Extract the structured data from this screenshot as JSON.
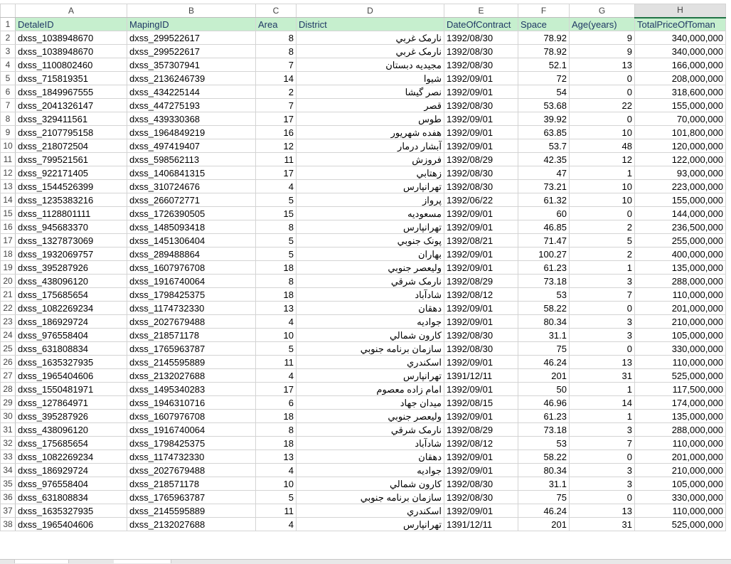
{
  "columns": [
    "A",
    "B",
    "C",
    "D",
    "E",
    "F",
    "G",
    "H"
  ],
  "header": [
    "DetaleID",
    "MapingID",
    "Area",
    "District",
    "DateOfContract",
    "Space",
    "Age(years)",
    "TotalPriceOfToman"
  ],
  "rows": [
    [
      "dxss_1038948670",
      "dxss_299522617",
      "8",
      "نارمک غربي",
      "1392/08/30",
      "78.92",
      "9",
      "340,000,000"
    ],
    [
      "dxss_1038948670",
      "dxss_299522617",
      "8",
      "نارمک غربي",
      "1392/08/30",
      "78.92",
      "9",
      "340,000,000"
    ],
    [
      "dxss_1100802460",
      "dxss_357307941",
      "7",
      "مجيديه دبستان",
      "1392/08/30",
      "52.1",
      "13",
      "166,000,000"
    ],
    [
      "dxss_715819351",
      "dxss_2136246739",
      "14",
      "شيوا",
      "1392/09/01",
      "72",
      "0",
      "208,000,000"
    ],
    [
      "dxss_1849967555",
      "dxss_434225144",
      "2",
      "نصر گيشا",
      "1392/09/01",
      "54",
      "0",
      "318,600,000"
    ],
    [
      "dxss_2041326147",
      "dxss_447275193",
      "7",
      "قصر",
      "1392/08/30",
      "53.68",
      "22",
      "155,000,000"
    ],
    [
      "dxss_329411561",
      "dxss_439330368",
      "17",
      "طوس",
      "1392/09/01",
      "39.92",
      "0",
      "70,000,000"
    ],
    [
      "dxss_2107795158",
      "dxss_1964849219",
      "16",
      "هفده شهريور",
      "1392/09/01",
      "63.85",
      "10",
      "101,800,000"
    ],
    [
      "dxss_218072504",
      "dxss_497419407",
      "12",
      "آبشار درمار",
      "1392/09/01",
      "53.7",
      "48",
      "120,000,000"
    ],
    [
      "dxss_799521561",
      "dxss_598562113",
      "11",
      "فروزش",
      "1392/08/29",
      "42.35",
      "12",
      "122,000,000"
    ],
    [
      "dxss_922171405",
      "dxss_1406841315",
      "17",
      "زهتابي",
      "1392/08/30",
      "47",
      "1",
      "93,000,000"
    ],
    [
      "dxss_1544526399",
      "dxss_310724676",
      "4",
      "تهرانپارس",
      "1392/08/30",
      "73.21",
      "10",
      "223,000,000"
    ],
    [
      "dxss_1235383216",
      "dxss_266072771",
      "5",
      "پرواز",
      "1392/06/22",
      "61.32",
      "10",
      "155,000,000"
    ],
    [
      "dxss_1128801111",
      "dxss_1726390505",
      "15",
      "مسعوديه",
      "1392/09/01",
      "60",
      "0",
      "144,000,000"
    ],
    [
      "dxss_945683370",
      "dxss_1485093418",
      "8",
      "تهرانپارس",
      "1392/09/01",
      "46.85",
      "2",
      "236,500,000"
    ],
    [
      "dxss_1327873069",
      "dxss_1451306404",
      "5",
      "پونک جنوبي",
      "1392/08/21",
      "71.47",
      "5",
      "255,000,000"
    ],
    [
      "dxss_1932069757",
      "dxss_289488864",
      "5",
      "بهاران",
      "1392/09/01",
      "100.27",
      "2",
      "400,000,000"
    ],
    [
      "dxss_395287926",
      "dxss_1607976708",
      "18",
      "وليعصر جنوبي",
      "1392/09/01",
      "61.23",
      "1",
      "135,000,000"
    ],
    [
      "dxss_438096120",
      "dxss_1916740064",
      "8",
      "نارمک شرقي",
      "1392/08/29",
      "73.18",
      "3",
      "288,000,000"
    ],
    [
      "dxss_175685654",
      "dxss_1798425375",
      "18",
      "شادآباد",
      "1392/08/12",
      "53",
      "7",
      "110,000,000"
    ],
    [
      "dxss_1082269234",
      "dxss_1174732330",
      "13",
      "دهقان",
      "1392/09/01",
      "58.22",
      "0",
      "201,000,000"
    ],
    [
      "dxss_186929724",
      "dxss_2027679488",
      "4",
      "جواديه",
      "1392/09/01",
      "80.34",
      "3",
      "210,000,000"
    ],
    [
      "dxss_976558404",
      "dxss_218571178",
      "10",
      "کارون شمالي",
      "1392/08/30",
      "31.1",
      "3",
      "105,000,000"
    ],
    [
      "dxss_631808834",
      "dxss_1765963787",
      "5",
      "سازمان برنامه جنوبي",
      "1392/08/30",
      "75",
      "0",
      "330,000,000"
    ],
    [
      "dxss_1635327935",
      "dxss_2145595889",
      "11",
      "اسکندري",
      "1392/09/01",
      "46.24",
      "13",
      "110,000,000"
    ],
    [
      "dxss_1965404606",
      "dxss_2132027688",
      "4",
      "تهرانپارس",
      "1391/12/11",
      "201",
      "31",
      "525,000,000"
    ],
    [
      "dxss_1550481971",
      "dxss_1495340283",
      "17",
      "امام زاده معصوم",
      "1392/09/01",
      "50",
      "1",
      "117,500,000"
    ],
    [
      "dxss_127864971",
      "dxss_1946310716",
      "6",
      "ميدان جهاد",
      "1392/08/15",
      "46.96",
      "14",
      "174,000,000"
    ],
    [
      "dxss_395287926",
      "dxss_1607976708",
      "18",
      "وليعصر جنوبي",
      "1392/09/01",
      "61.23",
      "1",
      "135,000,000"
    ],
    [
      "dxss_438096120",
      "dxss_1916740064",
      "8",
      "نارمک شرقي",
      "1392/08/29",
      "73.18",
      "3",
      "288,000,000"
    ],
    [
      "dxss_175685654",
      "dxss_1798425375",
      "18",
      "شادآباد",
      "1392/08/12",
      "53",
      "7",
      "110,000,000"
    ],
    [
      "dxss_1082269234",
      "dxss_1174732330",
      "13",
      "دهقان",
      "1392/09/01",
      "58.22",
      "0",
      "201,000,000"
    ],
    [
      "dxss_186929724",
      "dxss_2027679488",
      "4",
      "جواديه",
      "1392/09/01",
      "80.34",
      "3",
      "210,000,000"
    ],
    [
      "dxss_976558404",
      "dxss_218571178",
      "10",
      "کارون شمالي",
      "1392/08/30",
      "31.1",
      "3",
      "105,000,000"
    ],
    [
      "dxss_631808834",
      "dxss_1765963787",
      "5",
      "سازمان برنامه جنوبي",
      "1392/08/30",
      "75",
      "0",
      "330,000,000"
    ],
    [
      "dxss_1635327935",
      "dxss_2145595889",
      "11",
      "اسکندري",
      "1392/09/01",
      "46.24",
      "13",
      "110,000,000"
    ],
    [
      "dxss_1965404606",
      "dxss_2132027688",
      "4",
      "تهرانپارس",
      "1391/12/11",
      "201",
      "31",
      "525,000,000"
    ]
  ],
  "selected_column": "H",
  "colors": {
    "header_fill": "#c6efce",
    "header_text": "#1f3864",
    "grid": "#d4d4d4",
    "selection": "#217346"
  }
}
